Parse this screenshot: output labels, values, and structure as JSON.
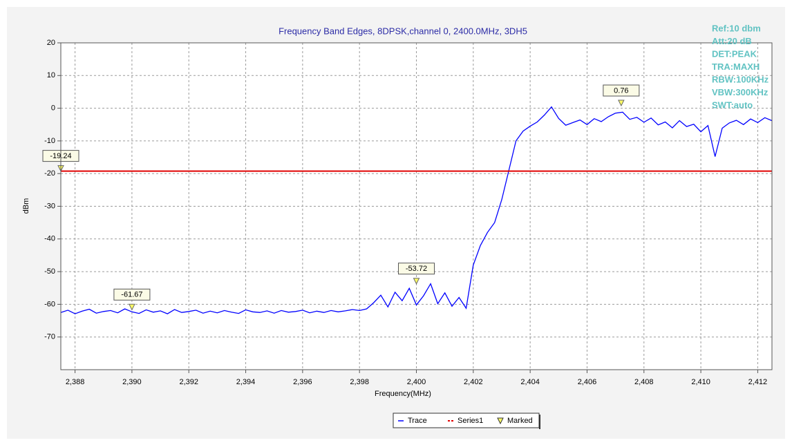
{
  "chart_data": {
    "type": "line",
    "title": "Frequency Band Edges, 8DPSK,channel 0, 2400.0MHz, 3DH5",
    "x_label": "Frequency(MHz)",
    "y_label": "dBm",
    "annotations": [
      "Ref:10 dbm",
      "Att:20 dB",
      "DET:PEAK",
      "TRA:MAXH",
      "RBW:100KHz",
      "VBW:300KHz",
      "SWT:auto"
    ],
    "xlim": [
      2387.5,
      2412.5
    ],
    "ylim": [
      -80,
      20
    ],
    "xticks": [
      {
        "value": 2388,
        "label": "2,388"
      },
      {
        "value": 2390,
        "label": "2,390"
      },
      {
        "value": 2392,
        "label": "2,392"
      },
      {
        "value": 2394,
        "label": "2,394"
      },
      {
        "value": 2396,
        "label": "2,396"
      },
      {
        "value": 2398,
        "label": "2,398"
      },
      {
        "value": 2400,
        "label": "2,400"
      },
      {
        "value": 2402,
        "label": "2,402"
      },
      {
        "value": 2404,
        "label": "2,404"
      },
      {
        "value": 2406,
        "label": "2,406"
      },
      {
        "value": 2408,
        "label": "2,408"
      },
      {
        "value": 2410,
        "label": "2,410"
      },
      {
        "value": 2412,
        "label": "2,412"
      }
    ],
    "yticks": [
      -70,
      -60,
      -50,
      -40,
      -30,
      -20,
      -10,
      0,
      10,
      20
    ],
    "grid": true,
    "legend": "bottom",
    "series": [
      {
        "name": "Trace",
        "color": "#0000ff",
        "x": [
          2387.5,
          2387.75,
          2388,
          2388.25,
          2388.5,
          2388.75,
          2389,
          2389.25,
          2389.5,
          2389.75,
          2390,
          2390.25,
          2390.5,
          2390.75,
          2391,
          2391.25,
          2391.5,
          2391.75,
          2392,
          2392.25,
          2392.5,
          2392.75,
          2393,
          2393.25,
          2393.5,
          2393.75,
          2394,
          2394.25,
          2394.5,
          2394.75,
          2395,
          2395.25,
          2395.5,
          2395.75,
          2396,
          2396.25,
          2396.5,
          2396.75,
          2397,
          2397.25,
          2397.5,
          2397.75,
          2398,
          2398.25,
          2398.5,
          2398.75,
          2399,
          2399.25,
          2399.5,
          2399.75,
          2400,
          2400.25,
          2400.5,
          2400.75,
          2401,
          2401.25,
          2401.5,
          2401.75,
          2402,
          2402.25,
          2402.5,
          2402.75,
          2403,
          2403.25,
          2403.5,
          2403.75,
          2404,
          2404.25,
          2404.5,
          2404.75,
          2405,
          2405.25,
          2405.5,
          2405.75,
          2406,
          2406.25,
          2406.5,
          2406.75,
          2407,
          2407.25,
          2407.5,
          2407.75,
          2408,
          2408.25,
          2408.5,
          2408.75,
          2409,
          2409.25,
          2409.5,
          2409.75,
          2410,
          2410.25,
          2410.5,
          2410.75,
          2411,
          2411.25,
          2411.5,
          2411.75,
          2412,
          2412.25,
          2412.5
        ],
        "values": [
          -62.5,
          -61.8,
          -62.9,
          -62.1,
          -61.5,
          -62.7,
          -62.2,
          -61.9,
          -62.6,
          -61.4,
          -62.3,
          -62.8,
          -61.7,
          -62.4,
          -62.0,
          -62.9,
          -61.6,
          -62.5,
          -62.2,
          -61.8,
          -62.7,
          -62.1,
          -62.6,
          -61.9,
          -62.4,
          -62.8,
          -61.7,
          -62.3,
          -62.5,
          -62.0,
          -62.7,
          -61.9,
          -62.4,
          -62.2,
          -61.8,
          -62.6,
          -62.1,
          -62.5,
          -61.9,
          -62.3,
          -62.0,
          -61.6,
          -61.9,
          -61.4,
          -59.5,
          -57.2,
          -60.8,
          -56.3,
          -58.9,
          -55.1,
          -60.2,
          -57.4,
          -53.7,
          -59.8,
          -56.5,
          -60.6,
          -57.9,
          -61.2,
          -48,
          -42,
          -38,
          -35,
          -28,
          -19,
          -10,
          -7,
          -5.5,
          -4.2,
          -2.1,
          0.4,
          -3.1,
          -5.2,
          -4.4,
          -3.6,
          -5.0,
          -3.2,
          -4.1,
          -2.6,
          -1.5,
          -1.2,
          -3.4,
          -2.8,
          -4.3,
          -3.0,
          -5.1,
          -4.2,
          -6.0,
          -3.8,
          -5.6,
          -4.9,
          -7.2,
          -5.3,
          -14.8,
          -6.1,
          -4.5,
          -3.7,
          -5.0,
          -3.3,
          -4.4,
          -2.9,
          -3.8
        ]
      },
      {
        "name": "Series1",
        "color": "#e00000",
        "x": [
          2387.5,
          2412.5
        ],
        "values": [
          -19.24,
          -19.24
        ]
      },
      {
        "name": "Marked",
        "color": "#ffff66",
        "x": [
          2387.5,
          2390,
          2400,
          2407.2
        ],
        "values": [
          -19.24,
          -61.67,
          -53.72,
          0.76
        ]
      }
    ]
  }
}
